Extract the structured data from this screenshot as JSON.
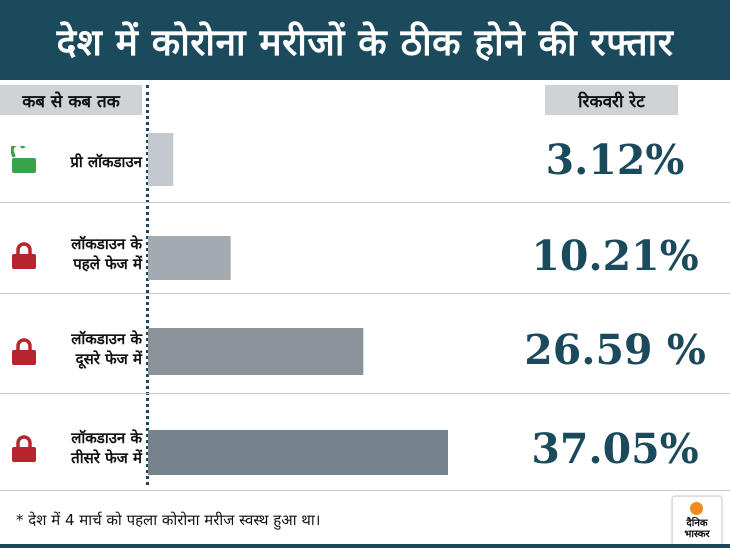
{
  "title": "देश में कोरोना मरीजों के ठीक होने की रफ्तार",
  "headers": {
    "period": "कब से कब तक",
    "rate": "रिकवरी रेट"
  },
  "chart_data": {
    "type": "bar",
    "orientation": "horizontal",
    "categories": [
      "प्री लॉकडाउन",
      "लॉकडाउन के पहले फेज में",
      "लॉकडाउन के दूसरे फेज में",
      "लॉकडाउन के तीसरे फेज में"
    ],
    "values": [
      3.12,
      10.21,
      26.59,
      37.05
    ],
    "value_labels": [
      "3.12%",
      "10.21%",
      "26.59 %",
      "37.05%"
    ],
    "bar_colors": [
      "#c3c9ce",
      "#a3abb1",
      "#8a9399",
      "#76838c"
    ]
  },
  "rows": [
    {
      "label_lines": [
        "प्री लॉकडाउन"
      ],
      "lock": "open-lock-icon",
      "lock_color": "#3aa34a"
    },
    {
      "label_lines": [
        "लॉकडाउन के",
        "पहले फेज में"
      ],
      "lock": "closed-lock-icon",
      "lock_color": "#b8242c"
    },
    {
      "label_lines": [
        "लॉकडाउन के",
        "दूसरे फेज में"
      ],
      "lock": "closed-lock-icon",
      "lock_color": "#b8242c"
    },
    {
      "label_lines": [
        "लॉकडाउन के",
        "तीसरे फेज में"
      ],
      "lock": "closed-lock-icon",
      "lock_color": "#b8242c"
    }
  ],
  "footnote": "* देश में 4 मार्च को पहला कोरोना मरीज स्वस्थ हुआ था।",
  "logo": {
    "line1": "दैनिक",
    "line2": "भास्कर"
  },
  "colors": {
    "accent": "#1b4a5c",
    "header_bg": "#cfd3d6"
  }
}
